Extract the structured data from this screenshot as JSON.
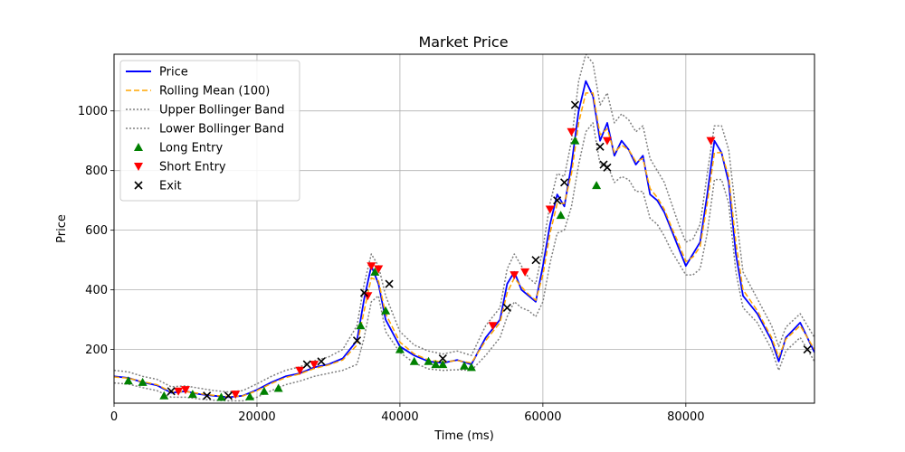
{
  "chart_data": {
    "type": "line",
    "title": "Market Price",
    "xlabel": "Time (ms)",
    "ylabel": "Price",
    "xlim": [
      0,
      98000
    ],
    "ylim": [
      20,
      1190
    ],
    "xticks": [
      0,
      20000,
      40000,
      60000,
      80000
    ],
    "yticks": [
      200,
      400,
      600,
      800,
      1000
    ],
    "grid": true,
    "legend_position": "top-left",
    "colors": {
      "price": "#0000ff",
      "rolling_mean": "#ffa500",
      "bollinger": "#808080",
      "long_entry": "#008000",
      "short_entry": "#ff0000",
      "exit": "#000000"
    },
    "legend": [
      {
        "label": "Price",
        "key": "price",
        "style": "solid"
      },
      {
        "label": "Rolling Mean (100)",
        "key": "rolling_mean",
        "style": "dashed"
      },
      {
        "label": "Upper Bollinger Band",
        "key": "bollinger",
        "style": "dotted"
      },
      {
        "label": "Lower Bollinger Band",
        "key": "bollinger",
        "style": "dotted"
      },
      {
        "label": "Long Entry",
        "key": "long_entry",
        "style": "triangle-up"
      },
      {
        "label": "Short Entry",
        "key": "short_entry",
        "style": "triangle-down"
      },
      {
        "label": "Exit",
        "key": "exit",
        "style": "x"
      }
    ],
    "series": [
      {
        "name": "Price",
        "x": [
          0,
          2000,
          4000,
          6000,
          8000,
          10000,
          12000,
          14000,
          16000,
          18000,
          20000,
          22000,
          24000,
          26000,
          28000,
          30000,
          32000,
          34000,
          35000,
          36000,
          37000,
          38000,
          40000,
          42000,
          44000,
          46000,
          48000,
          50000,
          52000,
          54000,
          55000,
          56000,
          57000,
          58000,
          59000,
          60000,
          61000,
          62000,
          63000,
          64000,
          65000,
          66000,
          67000,
          68000,
          69000,
          70000,
          71000,
          72000,
          73000,
          74000,
          75000,
          76000,
          77000,
          78000,
          79000,
          80000,
          81000,
          82000,
          83000,
          84000,
          85000,
          86000,
          87000,
          88000,
          90000,
          92000,
          93000,
          94000,
          96000,
          98000
        ],
        "y": [
          110,
          105,
          90,
          80,
          55,
          60,
          50,
          45,
          40,
          45,
          65,
          90,
          110,
          120,
          140,
          150,
          170,
          230,
          370,
          480,
          420,
          300,
          210,
          180,
          160,
          155,
          165,
          150,
          240,
          300,
          420,
          460,
          400,
          380,
          360,
          480,
          620,
          720,
          680,
          820,
          1000,
          1100,
          1050,
          900,
          960,
          850,
          900,
          870,
          820,
          850,
          720,
          700,
          660,
          600,
          540,
          480,
          520,
          560,
          720,
          900,
          860,
          760,
          520,
          380,
          320,
          230,
          160,
          240,
          290,
          190
        ]
      },
      {
        "name": "Rolling Mean (100)",
        "x": [
          0,
          2000,
          4000,
          6000,
          8000,
          10000,
          12000,
          14000,
          16000,
          18000,
          20000,
          22000,
          24000,
          26000,
          28000,
          30000,
          32000,
          34000,
          35000,
          36000,
          37000,
          38000,
          40000,
          42000,
          44000,
          46000,
          48000,
          50000,
          52000,
          54000,
          55000,
          56000,
          57000,
          58000,
          59000,
          60000,
          61000,
          62000,
          63000,
          64000,
          65000,
          66000,
          67000,
          68000,
          69000,
          70000,
          71000,
          72000,
          73000,
          74000,
          75000,
          76000,
          77000,
          78000,
          79000,
          80000,
          81000,
          82000,
          83000,
          84000,
          85000,
          86000,
          87000,
          88000,
          90000,
          92000,
          93000,
          94000,
          96000,
          98000
        ],
        "y": [
          108,
          104,
          92,
          82,
          58,
          59,
          52,
          46,
          42,
          44,
          62,
          86,
          106,
          118,
          136,
          148,
          165,
          215,
          330,
          440,
          430,
          320,
          225,
          185,
          165,
          158,
          163,
          155,
          230,
          290,
          390,
          440,
          410,
          385,
          365,
          450,
          590,
          690,
          690,
          790,
          960,
          1060,
          1060,
          920,
          940,
          860,
          885,
          870,
          830,
          840,
          740,
          710,
          670,
          610,
          555,
          495,
          510,
          545,
          690,
          860,
          860,
          780,
          560,
          400,
          330,
          240,
          175,
          235,
          280,
          200
        ]
      },
      {
        "name": "Upper Bollinger Band",
        "x": [
          0,
          2000,
          4000,
          6000,
          8000,
          10000,
          12000,
          14000,
          16000,
          18000,
          20000,
          22000,
          24000,
          26000,
          28000,
          30000,
          32000,
          34000,
          35000,
          36000,
          37000,
          38000,
          40000,
          42000,
          44000,
          46000,
          48000,
          50000,
          52000,
          54000,
          55000,
          56000,
          57000,
          58000,
          59000,
          60000,
          61000,
          62000,
          63000,
          64000,
          65000,
          66000,
          67000,
          68000,
          69000,
          70000,
          71000,
          72000,
          73000,
          74000,
          75000,
          76000,
          77000,
          78000,
          79000,
          80000,
          81000,
          82000,
          83000,
          84000,
          85000,
          86000,
          87000,
          88000,
          90000,
          92000,
          93000,
          94000,
          96000,
          98000
        ],
        "y": [
          130,
          125,
          110,
          100,
          75,
          78,
          70,
          62,
          58,
          62,
          85,
          110,
          130,
          142,
          162,
          175,
          200,
          280,
          420,
          520,
          480,
          380,
          260,
          215,
          195,
          185,
          195,
          180,
          280,
          340,
          470,
          520,
          480,
          440,
          420,
          540,
          690,
          790,
          780,
          900,
          1100,
          1190,
          1160,
          1020,
          1060,
          960,
          990,
          970,
          930,
          950,
          840,
          800,
          760,
          690,
          620,
          560,
          570,
          620,
          790,
          950,
          950,
          870,
          660,
          460,
          370,
          280,
          210,
          275,
          320,
          240
        ]
      },
      {
        "name": "Lower Bollinger Band",
        "x": [
          0,
          2000,
          4000,
          6000,
          8000,
          10000,
          12000,
          14000,
          16000,
          18000,
          20000,
          22000,
          24000,
          26000,
          28000,
          30000,
          32000,
          34000,
          35000,
          36000,
          37000,
          38000,
          40000,
          42000,
          44000,
          46000,
          48000,
          50000,
          52000,
          54000,
          55000,
          56000,
          57000,
          58000,
          59000,
          60000,
          61000,
          62000,
          63000,
          64000,
          65000,
          66000,
          67000,
          68000,
          69000,
          70000,
          71000,
          72000,
          73000,
          74000,
          75000,
          76000,
          77000,
          78000,
          79000,
          80000,
          81000,
          82000,
          83000,
          84000,
          85000,
          86000,
          87000,
          88000,
          90000,
          92000,
          93000,
          94000,
          96000,
          98000
        ],
        "y": [
          88,
          84,
          72,
          62,
          40,
          40,
          34,
          30,
          28,
          28,
          40,
          62,
          82,
          94,
          110,
          120,
          130,
          150,
          240,
          360,
          380,
          260,
          190,
          155,
          135,
          130,
          132,
          130,
          180,
          240,
          310,
          360,
          340,
          330,
          310,
          360,
          490,
          590,
          600,
          680,
          820,
          930,
          960,
          820,
          820,
          760,
          780,
          770,
          730,
          730,
          640,
          620,
          580,
          530,
          490,
          450,
          450,
          470,
          590,
          770,
          770,
          690,
          460,
          340,
          290,
          200,
          130,
          195,
          240,
          160
        ]
      }
    ],
    "markers": {
      "long_entry": {
        "label": "Long Entry",
        "x": [
          2000,
          4000,
          7000,
          11000,
          15000,
          19000,
          21000,
          23000,
          34500,
          36500,
          38000,
          40000,
          42000,
          44000,
          45000,
          46000,
          49000,
          50000,
          62500,
          64500,
          67500
        ],
        "y": [
          95,
          90,
          45,
          50,
          40,
          42,
          60,
          70,
          280,
          460,
          330,
          200,
          160,
          160,
          150,
          150,
          145,
          140,
          650,
          900,
          750
        ]
      },
      "short_entry": {
        "label": "Short Entry",
        "x": [
          9000,
          10000,
          17000,
          26000,
          28000,
          35500,
          36000,
          37000,
          53000,
          56000,
          57500,
          61000,
          64000,
          69000,
          83500
        ],
        "y": [
          60,
          65,
          50,
          130,
          150,
          380,
          480,
          470,
          280,
          450,
          460,
          670,
          930,
          900,
          900
        ]
      },
      "exit": {
        "label": "Exit",
        "x": [
          8000,
          13000,
          16000,
          27000,
          29000,
          34000,
          35000,
          38500,
          46000,
          55000,
          59000,
          62000,
          63000,
          64500,
          68000,
          68500,
          69000,
          97000
        ],
        "y": [
          60,
          45,
          45,
          150,
          160,
          230,
          390,
          420,
          170,
          340,
          500,
          700,
          760,
          1020,
          880,
          820,
          810,
          200
        ]
      }
    }
  }
}
